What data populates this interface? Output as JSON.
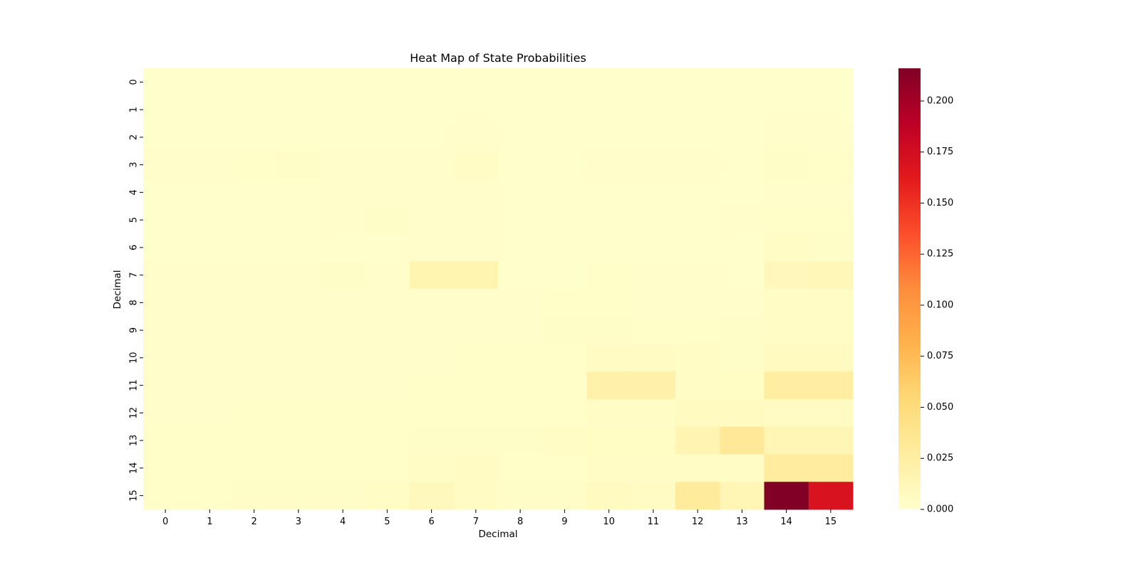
{
  "chart_data": {
    "type": "heatmap",
    "title": "Heat Map of State Probabilities",
    "xlabel": "Decimal",
    "ylabel": "Decimal",
    "x_categories": [
      "0",
      "1",
      "2",
      "3",
      "4",
      "5",
      "6",
      "7",
      "8",
      "9",
      "10",
      "11",
      "12",
      "13",
      "14",
      "15"
    ],
    "y_categories": [
      "0",
      "1",
      "2",
      "3",
      "4",
      "5",
      "6",
      "7",
      "8",
      "9",
      "10",
      "11",
      "12",
      "13",
      "14",
      "15"
    ],
    "colorbar": {
      "colormap": "YlOrRd",
      "range": [
        0,
        0.216
      ],
      "ticks": [
        0.0,
        0.025,
        0.05,
        0.075,
        0.1,
        0.125,
        0.15,
        0.175,
        0.2
      ],
      "tick_labels": [
        "0.000",
        "0.025",
        "0.050",
        "0.075",
        "0.100",
        "0.125",
        "0.150",
        "0.175",
        "0.200"
      ]
    },
    "values": [
      [
        0.0,
        0.0,
        0.0,
        0.0,
        0.0,
        0.0,
        0.0,
        0.0,
        0.0,
        0.0,
        0.0,
        0.0,
        0.0,
        0.0,
        0.0,
        0.0
      ],
      [
        0.0,
        0.0,
        0.0,
        0.0,
        0.0,
        0.0,
        0.0,
        0.0,
        0.0,
        0.0,
        0.0,
        0.0,
        0.0,
        0.0,
        0.0,
        0.0
      ],
      [
        0.0,
        0.0,
        0.0,
        0.0,
        0.0,
        0.0,
        0.0,
        0.001,
        0.0,
        0.0,
        0.0,
        0.0,
        0.0,
        0.0,
        0.001,
        0.001
      ],
      [
        0.001,
        0.001,
        0.002,
        0.003,
        0.001,
        0.001,
        0.001,
        0.004,
        0.0,
        0.0,
        0.001,
        0.001,
        0.001,
        0.0,
        0.003,
        0.002
      ],
      [
        0.0,
        0.0,
        0.0,
        0.0,
        0.001,
        0.001,
        0.001,
        0.001,
        0.0,
        0.0,
        0.0,
        0.0,
        0.0,
        0.0,
        0.001,
        0.001
      ],
      [
        0.0,
        0.0,
        0.0,
        0.0,
        0.001,
        0.003,
        0.001,
        0.001,
        0.0,
        0.0,
        0.0,
        0.0,
        0.0,
        0.001,
        0.002,
        0.002
      ],
      [
        0.0,
        0.0,
        0.0,
        0.0,
        0.0,
        0.0,
        0.001,
        0.001,
        0.0,
        0.0,
        0.0,
        0.0,
        0.0,
        0.0,
        0.004,
        0.003
      ],
      [
        0.001,
        0.001,
        0.001,
        0.001,
        0.003,
        0.001,
        0.017,
        0.017,
        0.0,
        0.0,
        0.002,
        0.001,
        0.001,
        0.0,
        0.011,
        0.012
      ],
      [
        0.001,
        0.001,
        0.001,
        0.001,
        0.001,
        0.001,
        0.001,
        0.001,
        0.001,
        0.002,
        0.002,
        0.001,
        0.001,
        0.001,
        0.004,
        0.004
      ],
      [
        0.001,
        0.001,
        0.001,
        0.001,
        0.001,
        0.001,
        0.001,
        0.001,
        0.001,
        0.003,
        0.003,
        0.002,
        0.002,
        0.003,
        0.004,
        0.004
      ],
      [
        0.001,
        0.001,
        0.001,
        0.001,
        0.001,
        0.001,
        0.001,
        0.002,
        0.002,
        0.002,
        0.006,
        0.006,
        0.004,
        0.003,
        0.008,
        0.008
      ],
      [
        0.001,
        0.001,
        0.001,
        0.001,
        0.001,
        0.001,
        0.002,
        0.002,
        0.002,
        0.002,
        0.021,
        0.021,
        0.004,
        0.005,
        0.026,
        0.026
      ],
      [
        0.001,
        0.001,
        0.002,
        0.002,
        0.002,
        0.002,
        0.002,
        0.002,
        0.002,
        0.002,
        0.004,
        0.004,
        0.008,
        0.008,
        0.006,
        0.006
      ],
      [
        0.002,
        0.002,
        0.002,
        0.002,
        0.002,
        0.002,
        0.003,
        0.003,
        0.003,
        0.004,
        0.005,
        0.005,
        0.016,
        0.032,
        0.014,
        0.015
      ],
      [
        0.002,
        0.002,
        0.002,
        0.002,
        0.002,
        0.002,
        0.004,
        0.006,
        0.002,
        0.002,
        0.004,
        0.004,
        0.004,
        0.004,
        0.028,
        0.028
      ],
      [
        0.002,
        0.002,
        0.003,
        0.003,
        0.003,
        0.004,
        0.01,
        0.006,
        0.003,
        0.003,
        0.008,
        0.006,
        0.03,
        0.014,
        0.216,
        0.17
      ]
    ]
  }
}
